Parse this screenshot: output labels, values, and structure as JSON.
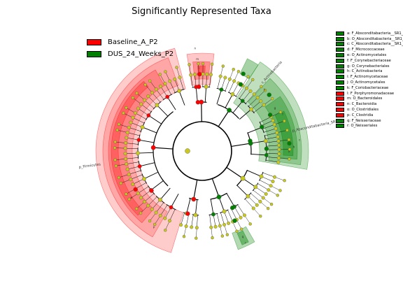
{
  "title": "Significantly Represented Taxa",
  "colors": {
    "baseline": "#ff0000",
    "dus": "#008000",
    "node_default": "#c9c91b"
  },
  "legend": [
    {
      "label": "Baseline_A_P2",
      "color": "#ff0000"
    },
    {
      "label": "DUS_24_Weeks_P2",
      "color": "#008000"
    }
  ],
  "chart_data": {
    "type": "cladogram",
    "title": "Significantly Represented Taxa",
    "groups": [
      "Baseline_A_P2",
      "DUS_24_Weeks_P2"
    ],
    "clade_labels": [
      {
        "text": "p_Firmicutes",
        "group": "Baseline_A_P2"
      },
      {
        "text": "c_Actinobacteria",
        "group": "DUS_24_Weeks_P2"
      },
      {
        "text": "p_Absconditabacteria_SR1",
        "group": "DUS_24_Weeks_P2"
      }
    ],
    "biomarkers": [
      {
        "key": "a",
        "label": "a: F_Absconditabacteria__SR1_",
        "group": "DUS_24_Weeks_P2"
      },
      {
        "key": "b",
        "label": "b: O_Absconditabacteria__SR1_",
        "group": "DUS_24_Weeks_P2"
      },
      {
        "key": "c",
        "label": "c: C_Absconditabacteria__SR1_",
        "group": "DUS_24_Weeks_P2"
      },
      {
        "key": "d",
        "label": "d: F_Micrococcaceae",
        "group": "DUS_24_Weeks_P2"
      },
      {
        "key": "e",
        "label": "e: O_Actinomycetales",
        "group": "DUS_24_Weeks_P2"
      },
      {
        "key": "f",
        "label": "f: F_Corynebacteriaceae",
        "group": "DUS_24_Weeks_P2"
      },
      {
        "key": "g",
        "label": "g: O_Corynebacteriales",
        "group": "DUS_24_Weeks_P2"
      },
      {
        "key": "h",
        "label": "h: C_Actinobacteria",
        "group": "DUS_24_Weeks_P2"
      },
      {
        "key": "i",
        "label": "i: F_Actinomycetaceae",
        "group": "DUS_24_Weeks_P2"
      },
      {
        "key": "j",
        "label": "j: O_Actinomycetales",
        "group": "DUS_24_Weeks_P2"
      },
      {
        "key": "k",
        "label": "k: F_Coriobacteriaceae",
        "group": "DUS_24_Weeks_P2"
      },
      {
        "key": "l",
        "label": "l: F_Porphyromonadaceae",
        "group": "Baseline_A_P2"
      },
      {
        "key": "m",
        "label": "m: O_Bacteroidales",
        "group": "Baseline_A_P2"
      },
      {
        "key": "n",
        "label": "n: C_Bacteroidia",
        "group": "Baseline_A_P2"
      },
      {
        "key": "o",
        "label": "o: O_Clostridiales",
        "group": "Baseline_A_P2"
      },
      {
        "key": "p",
        "label": "p: C_Clostridia",
        "group": "Baseline_A_P2"
      },
      {
        "key": "q",
        "label": "q: F_Neisseriaceae",
        "group": "DUS_24_Weeks_P2"
      },
      {
        "key": "r",
        "label": "r: O_Neisseriales",
        "group": "DUS_24_Weeks_P2"
      }
    ]
  }
}
